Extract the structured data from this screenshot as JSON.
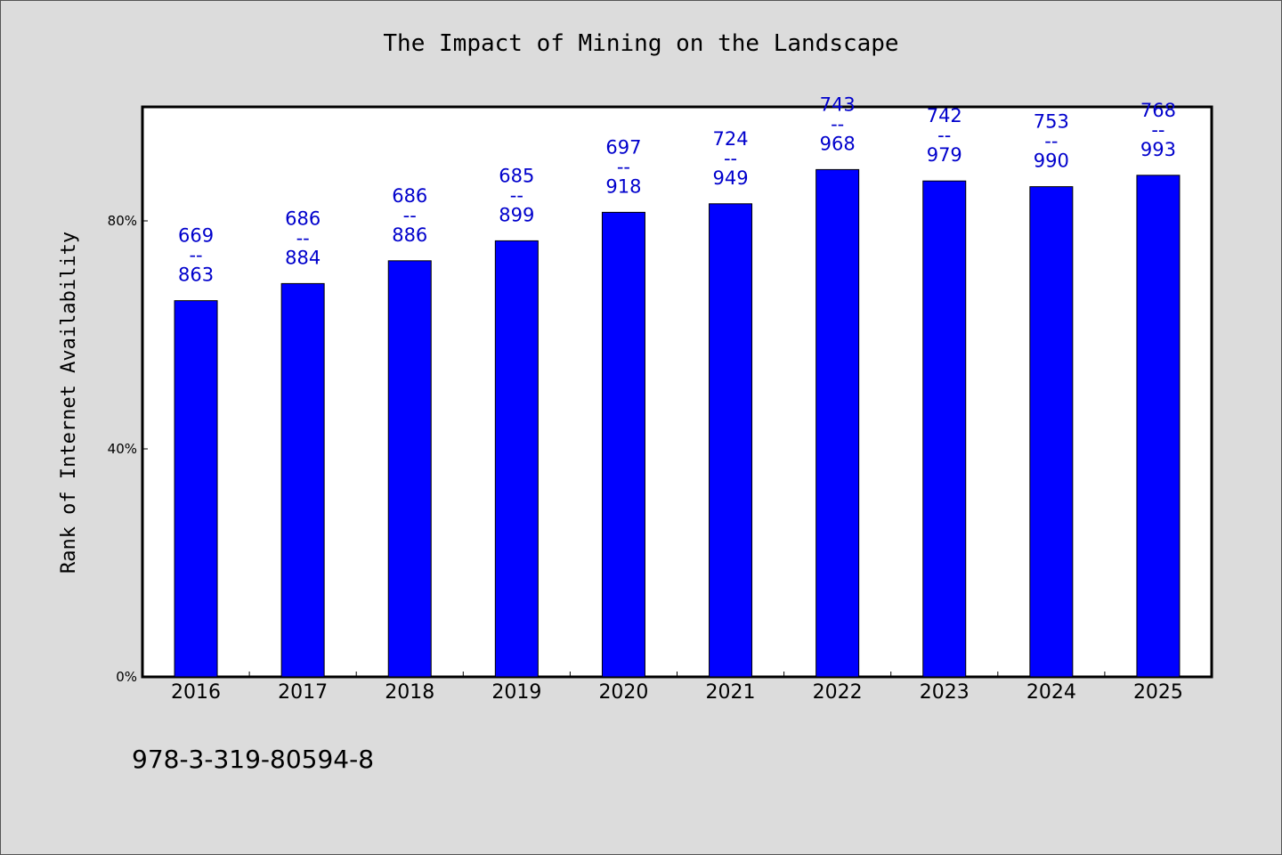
{
  "chart_data": {
    "type": "bar",
    "title": "The Impact of Mining on the Landscape",
    "xlabel": "",
    "ylabel": "Rank of Internet Availability",
    "categories": [
      "2016",
      "2017",
      "2018",
      "2019",
      "2020",
      "2021",
      "2022",
      "2023",
      "2024",
      "2025"
    ],
    "values": [
      66,
      69,
      73,
      76.5,
      81.5,
      83,
      89,
      87,
      86,
      88
    ],
    "data_labels": [
      {
        "top": "669",
        "sep": "--",
        "bottom": "863"
      },
      {
        "top": "686",
        "sep": "--",
        "bottom": "884"
      },
      {
        "top": "686",
        "sep": "--",
        "bottom": "886"
      },
      {
        "top": "685",
        "sep": "--",
        "bottom": "899"
      },
      {
        "top": "697",
        "sep": "--",
        "bottom": "918"
      },
      {
        "top": "724",
        "sep": "--",
        "bottom": "949"
      },
      {
        "top": "743",
        "sep": "--",
        "bottom": "968"
      },
      {
        "top": "742",
        "sep": "--",
        "bottom": "979"
      },
      {
        "top": "753",
        "sep": "--",
        "bottom": "990"
      },
      {
        "top": "768",
        "sep": "--",
        "bottom": "993"
      }
    ],
    "yticks": [
      {
        "value": 0,
        "label": "0%"
      },
      {
        "value": 40,
        "label": "40%"
      },
      {
        "value": 80,
        "label": "80%"
      }
    ],
    "ylim": [
      0,
      100
    ],
    "grid": false,
    "colors": {
      "bar": "#0000ff",
      "label": "#0000cc"
    }
  },
  "footer": {
    "isbn": "978-3-319-80594-8"
  }
}
